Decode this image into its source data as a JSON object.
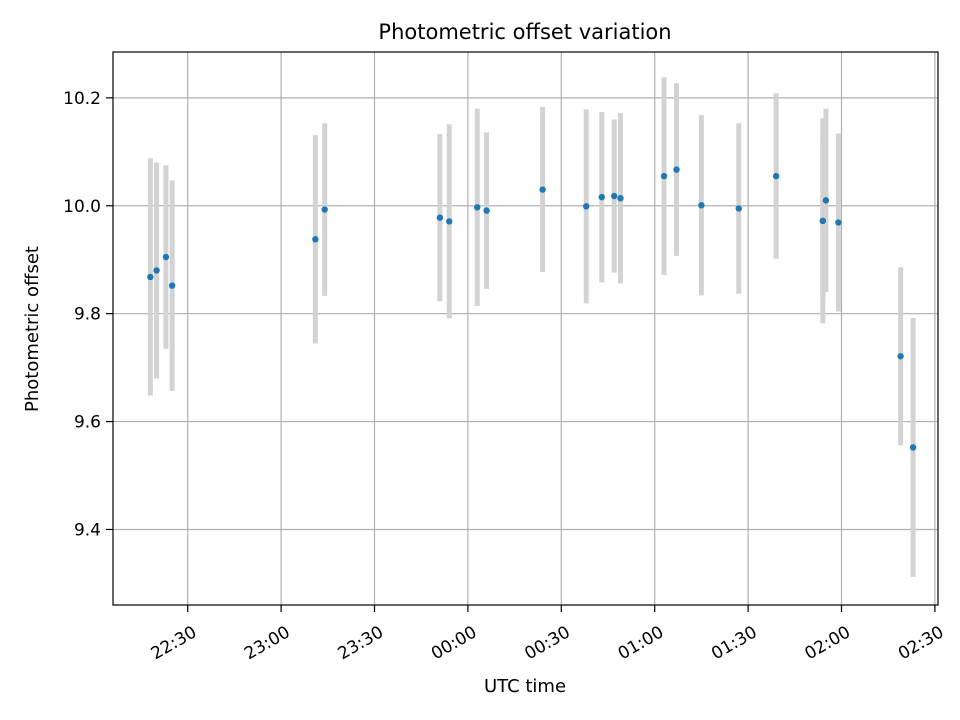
{
  "chart_data": {
    "type": "scatter",
    "title": "Photometric offset variation",
    "xlabel": "UTC time",
    "ylabel": "Photometric offset",
    "x_ticks": [
      "22:30",
      "23:00",
      "23:30",
      "00:00",
      "00:30",
      "01:00",
      "01:30",
      "02:00",
      "02:30"
    ],
    "x_tick_minutes": [
      1350,
      1380,
      1410,
      1440,
      1470,
      1500,
      1530,
      1560,
      1590
    ],
    "xlim_minutes": [
      1326,
      1591
    ],
    "y_ticks": [
      "9.4",
      "9.6",
      "9.8",
      "10.0",
      "10.2"
    ],
    "y_tick_values": [
      9.4,
      9.6,
      9.8,
      10.0,
      10.2
    ],
    "ylim": [
      9.26,
      10.285
    ],
    "grid": true,
    "marker_color": "#1f77b4",
    "errorbar_color": "#d3d3d3",
    "points": [
      {
        "t": "22:18",
        "y": 9.868,
        "err": 0.22
      },
      {
        "t": "22:20",
        "y": 9.88,
        "err": 0.2
      },
      {
        "t": "22:23",
        "y": 9.905,
        "err": 0.17
      },
      {
        "t": "22:25",
        "y": 9.852,
        "err": 0.195
      },
      {
        "t": "23:11",
        "y": 9.938,
        "err": 0.193
      },
      {
        "t": "23:14",
        "y": 9.993,
        "err": 0.16
      },
      {
        "t": "23:51",
        "y": 9.978,
        "err": 0.155
      },
      {
        "t": "23:54",
        "y": 9.971,
        "err": 0.18
      },
      {
        "t": "00:03",
        "y": 9.997,
        "err": 0.183
      },
      {
        "t": "00:06",
        "y": 9.991,
        "err": 0.145
      },
      {
        "t": "00:24",
        "y": 10.03,
        "err": 0.153
      },
      {
        "t": "00:38",
        "y": 9.999,
        "err": 0.18
      },
      {
        "t": "00:43",
        "y": 10.016,
        "err": 0.158
      },
      {
        "t": "00:47",
        "y": 10.018,
        "err": 0.142
      },
      {
        "t": "00:49",
        "y": 10.014,
        "err": 0.158
      },
      {
        "t": "01:03",
        "y": 10.055,
        "err": 0.183
      },
      {
        "t": "01:07",
        "y": 10.067,
        "err": 0.16
      },
      {
        "t": "01:15",
        "y": 10.001,
        "err": 0.167
      },
      {
        "t": "01:27",
        "y": 9.995,
        "err": 0.158
      },
      {
        "t": "01:39",
        "y": 10.055,
        "err": 0.153
      },
      {
        "t": "01:54",
        "y": 9.972,
        "err": 0.15
      },
      {
        "t": "01:54",
        "y": 9.972,
        "err": 0.19
      },
      {
        "t": "01:55",
        "y": 10.01,
        "err": 0.17
      },
      {
        "t": "01:59",
        "y": 9.969,
        "err": 0.165
      },
      {
        "t": "02:19",
        "y": 9.721,
        "err": 0.165
      },
      {
        "t": "02:23",
        "y": 9.552,
        "err": 0.24
      }
    ]
  }
}
